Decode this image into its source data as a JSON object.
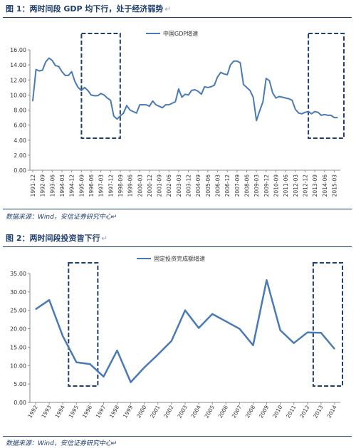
{
  "figure1": {
    "title": "图 1：两时间段 GDP 均下行，处于经济弱势",
    "title_mark": "↵",
    "source": "数据来源：Wind，安信证券研究中心",
    "source_mark": "↵",
    "chart_data": {
      "type": "line",
      "title": "",
      "series": [
        {
          "name": "中国GDP增速",
          "color": "#4a7ab6",
          "x": [
            "1991-12",
            "1992-03",
            "1992-06",
            "1992-09",
            "1992-12",
            "1993-03",
            "1993-06",
            "1993-09",
            "1993-12",
            "1994-03",
            "1994-06",
            "1994-09",
            "1994-12",
            "1995-03",
            "1995-06",
            "1995-09",
            "1995-12",
            "1996-03",
            "1996-06",
            "1996-09",
            "1996-12",
            "1997-03",
            "1997-06",
            "1997-09",
            "1997-12",
            "1998-03",
            "1998-06",
            "1998-09",
            "1998-12",
            "1999-03",
            "1999-06",
            "1999-09",
            "1999-12",
            "2000-03",
            "2000-06",
            "2000-09",
            "2000-12",
            "2001-03",
            "2001-06",
            "2001-09",
            "2001-12",
            "2002-03",
            "2002-06",
            "2002-09",
            "2002-12",
            "2003-03",
            "2003-06",
            "2003-09",
            "2003-12",
            "2004-03",
            "2004-06",
            "2004-09",
            "2004-12",
            "2005-03",
            "2005-06",
            "2005-09",
            "2005-12",
            "2006-03",
            "2006-06",
            "2006-09",
            "2006-12",
            "2007-03",
            "2007-06",
            "2007-09",
            "2007-12",
            "2008-03",
            "2008-06",
            "2008-09",
            "2008-12",
            "2009-03",
            "2009-06",
            "2009-09",
            "2009-12",
            "2010-03",
            "2010-06",
            "2010-09",
            "2010-12",
            "2011-03",
            "2011-06",
            "2011-09",
            "2011-12",
            "2012-03",
            "2012-06",
            "2012-09",
            "2012-12",
            "2013-03",
            "2013-06",
            "2013-09",
            "2013-12",
            "2014-03",
            "2014-06",
            "2014-09",
            "2014-12",
            "2015-03",
            "2015-06"
          ],
          "values": [
            9.2,
            13.4,
            13.2,
            13.3,
            14.4,
            14.9,
            14.6,
            13.9,
            13.8,
            13.1,
            12.6,
            12.6,
            13.1,
            11.8,
            11.0,
            10.6,
            11.0,
            10.6,
            10.0,
            9.9,
            9.9,
            10.2,
            10.0,
            9.6,
            9.3,
            7.2,
            6.8,
            7.2,
            7.6,
            8.6,
            8.0,
            7.8,
            7.6,
            8.7,
            8.7,
            8.7,
            8.5,
            9.2,
            8.7,
            8.5,
            8.3,
            8.7,
            8.7,
            8.9,
            9.1,
            10.8,
            9.7,
            10.1,
            10.0,
            10.6,
            10.7,
            10.5,
            10.1,
            11.1,
            11.0,
            11.1,
            11.3,
            12.4,
            13.0,
            12.8,
            12.7,
            14.0,
            14.5,
            14.5,
            14.3,
            11.4,
            11.0,
            10.6,
            9.7,
            6.6,
            7.9,
            9.1,
            12.2,
            11.9,
            10.3,
            9.6,
            9.8,
            9.7,
            9.6,
            9.5,
            9.3,
            8.1,
            7.6,
            7.5,
            7.7,
            7.8,
            7.5,
            7.8,
            7.7,
            7.3,
            7.4,
            7.3,
            7.3,
            7.0,
            7.0
          ]
        }
      ],
      "ylim": [
        0,
        16
      ],
      "yticks": [
        "0.00",
        "2.00",
        "4.00",
        "6.00",
        "8.00",
        "10.00",
        "12.00",
        "14.00",
        "16.00"
      ],
      "xticks": [
        "1991-12",
        "1992-09",
        "1993-06",
        "1994-03",
        "1994-12",
        "1995-09",
        "1996-06",
        "1997-03",
        "1997-12",
        "1998-09",
        "1999-06",
        "2000-03",
        "2000-12",
        "2001-09",
        "2002-06",
        "2003-03",
        "2003-12",
        "2004-09",
        "2005-06",
        "2006-03",
        "2006-12",
        "2007-09",
        "2008-06",
        "2009-03",
        "2009-12",
        "2010-09",
        "2011-06",
        "2012-03",
        "2012-12",
        "2013-09",
        "2014-06",
        "2015-03"
      ],
      "legend_position": "top-right",
      "grid": false,
      "annotations": [
        {
          "type": "dashed-box",
          "x_from": "1996-03",
          "x_to": "1998-03"
        },
        {
          "type": "dashed-box",
          "x_from": "2013-09",
          "x_to": "2015-06"
        }
      ]
    }
  },
  "figure2": {
    "title": "图 2：两时间段投资皆下行",
    "title_mark": "↵",
    "source": "数据来源：Wind，安信证券研究中心",
    "source_mark": "↵",
    "chart_data": {
      "type": "line",
      "title": "",
      "categories": [
        "1992",
        "1993",
        "1994",
        "1995",
        "1996",
        "1997",
        "1998",
        "1999",
        "2000",
        "2001",
        "2002",
        "2003",
        "2004",
        "2005",
        "2006",
        "2007",
        "2008",
        "2009",
        "2010",
        "2011",
        "2012",
        "2013",
        "2014"
      ],
      "series": [
        {
          "name": "固定投资完成额增速",
          "color": "#4a7ab6",
          "values": [
            25.3,
            27.8,
            18.0,
            10.9,
            10.4,
            7.0,
            14.1,
            5.5,
            9.5,
            13.0,
            16.7,
            25.0,
            20.2,
            24.0,
            22.0,
            20.0,
            15.5,
            33.2,
            19.6,
            16.1,
            19.0,
            18.9,
            14.5
          ]
        }
      ],
      "ylim": [
        0,
        35
      ],
      "yticks": [
        "0.00",
        "5.00",
        "10.00",
        "15.00",
        "20.00",
        "25.00",
        "30.00",
        "35.00"
      ],
      "legend_position": "top-center",
      "grid": false,
      "annotations": [
        {
          "type": "dashed-box",
          "x_from": "1995",
          "x_to": "1996"
        },
        {
          "type": "dashed-box",
          "x_from": "2013",
          "x_to": "2014"
        }
      ]
    }
  }
}
